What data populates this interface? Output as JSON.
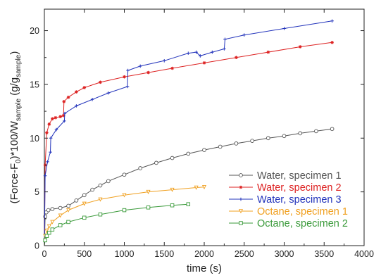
{
  "chart_data": {
    "type": "line",
    "xlabel": "time (s)",
    "ylabel": "(Force-F₀)*100/Wₛₐₘₚₗₑ (g/gₛₐₘₚₗₑ)",
    "ylabel_parts": {
      "pre": "(Force-F",
      "sub1": "0",
      "mid": ")*100/W",
      "sub2": "sample",
      "post": " (g/g",
      "sub3": "sample",
      "end": ")"
    },
    "xlim": [
      0,
      4000
    ],
    "ylim": [
      0,
      22
    ],
    "xticks": [
      0,
      500,
      1000,
      1500,
      2000,
      2500,
      3000,
      3500,
      4000
    ],
    "yticks": [
      0,
      5,
      10,
      15,
      20
    ],
    "grid": false,
    "legend_position": "bottom-right",
    "series": [
      {
        "name": "Water, specimen 1",
        "color": "#555555",
        "marker": "circle",
        "x": [
          0,
          10,
          25,
          50,
          100,
          200,
          300,
          400,
          500,
          600,
          700,
          800,
          1000,
          1200,
          1400,
          1600,
          1800,
          2000,
          2200,
          2400,
          2600,
          2800,
          3000,
          3200,
          3400,
          3600
        ],
        "y": [
          0,
          2.7,
          3.1,
          3.3,
          3.4,
          3.5,
          3.7,
          4.2,
          4.7,
          5.2,
          5.6,
          6.0,
          6.6,
          7.2,
          7.7,
          8.15,
          8.55,
          8.9,
          9.2,
          9.5,
          9.75,
          10.0,
          10.2,
          10.45,
          10.65,
          10.85
        ]
      },
      {
        "name": "Water, specimen 2",
        "color": "#dd2222",
        "marker": "star",
        "x": [
          0,
          10,
          30,
          60,
          100,
          140,
          200,
          240,
          245,
          300,
          400,
          500,
          700,
          1000,
          1300,
          1600,
          2000,
          2400,
          2800,
          3200,
          3600
        ],
        "y": [
          0,
          7.5,
          10.5,
          11.3,
          11.8,
          11.9,
          12.0,
          12.1,
          13.4,
          13.8,
          14.3,
          14.7,
          15.2,
          15.7,
          16.1,
          16.5,
          17.0,
          17.5,
          18.0,
          18.5,
          18.9
        ]
      },
      {
        "name": "Water, specimen 3",
        "color": "#2233bb",
        "marker": "plus",
        "x": [
          0,
          10,
          40,
          75,
          80,
          150,
          250,
          255,
          400,
          600,
          800,
          1040,
          1045,
          1200,
          1500,
          1800,
          1900,
          1950,
          2100,
          2250,
          2260,
          2500,
          3000,
          3600
        ],
        "y": [
          0,
          6.5,
          7.8,
          8.7,
          10.0,
          10.8,
          11.6,
          12.3,
          13.0,
          13.6,
          14.2,
          14.8,
          16.3,
          16.7,
          17.2,
          17.9,
          18.0,
          17.65,
          18.0,
          18.3,
          19.2,
          19.6,
          20.2,
          20.9
        ]
      },
      {
        "name": "Octane, specimen 1",
        "color": "#f0a020",
        "marker": "triangle-down",
        "x": [
          0,
          10,
          30,
          60,
          100,
          200,
          300,
          500,
          700,
          1000,
          1300,
          1600,
          1900,
          2000
        ],
        "y": [
          0,
          0.9,
          1.4,
          1.8,
          2.2,
          2.8,
          3.3,
          3.9,
          4.3,
          4.7,
          5.0,
          5.2,
          5.4,
          5.45
        ]
      },
      {
        "name": "Octane, specimen 2",
        "color": "#3a9a3a",
        "marker": "square",
        "x": [
          0,
          10,
          30,
          60,
          100,
          200,
          300,
          500,
          700,
          1000,
          1300,
          1600,
          1800
        ],
        "y": [
          0,
          0.5,
          0.9,
          1.2,
          1.5,
          1.9,
          2.2,
          2.6,
          2.9,
          3.3,
          3.55,
          3.75,
          3.85
        ]
      }
    ]
  }
}
